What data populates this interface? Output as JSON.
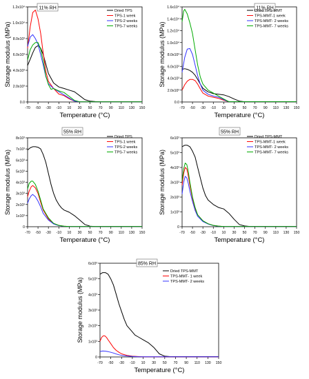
{
  "chart_data": [
    {
      "type": "line",
      "annotation": "11% RH",
      "xlabel": "Temperature (°C)",
      "ylabel": "Storage modulus (MPa)",
      "xlim": [
        -70,
        150
      ],
      "xticks": [
        "-70",
        "-50",
        "-30",
        "-10",
        "10",
        "30",
        "50",
        "70",
        "90",
        "110",
        "130",
        "150"
      ],
      "ylim": [
        0,
        12000
      ],
      "yticks": [
        "0.0",
        "2.0x10³",
        "4.0x10³",
        "6.0x10³",
        "8.0x10³",
        "1.0x10⁴",
        "1.2x10⁴"
      ],
      "legend_position": "top-right",
      "series": [
        {
          "name": "Dried TPS",
          "color": "#000000",
          "x": [
            -70,
            -65,
            -60,
            -55,
            -50,
            -45,
            -40,
            -35,
            -30,
            -20,
            -10,
            0,
            10,
            20,
            30,
            40,
            50,
            60,
            70,
            150
          ],
          "y": [
            4600,
            5400,
            6200,
            6900,
            7100,
            6800,
            6000,
            4800,
            3600,
            2400,
            1900,
            1700,
            1500,
            1300,
            800,
            300,
            100,
            50,
            30,
            30
          ]
        },
        {
          "name": "TPS-1 week",
          "color": "#ff0000",
          "x": [
            -70,
            -65,
            -60,
            -55,
            -50,
            -45,
            -40,
            -35,
            -30,
            -20,
            -10,
            0,
            10,
            20,
            30,
            150
          ],
          "y": [
            6800,
            9500,
            11300,
            11600,
            10500,
            8700,
            6200,
            3900,
            2600,
            1700,
            1000,
            800,
            400,
            100,
            30,
            30
          ]
        },
        {
          "name": "TPS-2 weeks",
          "color": "#3333ff",
          "x": [
            -70,
            -65,
            -60,
            -55,
            -50,
            -45,
            -40,
            -35,
            -30,
            -20,
            -10,
            0,
            10,
            20,
            30,
            150
          ],
          "y": [
            7000,
            8200,
            8500,
            8000,
            7300,
            6000,
            4700,
            3200,
            2300,
            1700,
            1300,
            900,
            500,
            100,
            30,
            30
          ]
        },
        {
          "name": "TPS-7 weeks",
          "color": "#00aa00",
          "x": [
            -70,
            -65,
            -60,
            -55,
            -50,
            -45,
            -40,
            -35,
            -30,
            -25,
            -20,
            -10,
            0,
            10,
            20,
            30,
            150
          ],
          "y": [
            5300,
            6600,
            7200,
            7500,
            7500,
            6700,
            5200,
            3300,
            2200,
            1600,
            1700,
            1400,
            1200,
            700,
            200,
            30,
            30
          ]
        }
      ]
    },
    {
      "type": "line",
      "annotation": "11% RH",
      "xlabel": "Temperature (°C)",
      "ylabel": "Storage modulus (MPa)",
      "xlim": [
        -70,
        150
      ],
      "xticks": [
        "-70",
        "-50",
        "-30",
        "-10",
        "10",
        "30",
        "50",
        "70",
        "90",
        "110",
        "130",
        "150"
      ],
      "ylim": [
        0,
        16000
      ],
      "yticks": [
        "0.0",
        "2.0x10³",
        "4.0x10³",
        "6.0x10³",
        "8.0x10³",
        "1.0x10⁴",
        "1.2x10⁴",
        "1.4x10⁴",
        "1.6x10⁴"
      ],
      "legend_position": "top-right",
      "series": [
        {
          "name": "Dried TPS-MMT",
          "color": "#000000",
          "x": [
            -70,
            -65,
            -60,
            -55,
            -50,
            -45,
            -40,
            -35,
            -30,
            -20,
            -10,
            0,
            10,
            20,
            30,
            40,
            50,
            150
          ],
          "y": [
            5500,
            5600,
            5500,
            5300,
            5000,
            4500,
            3800,
            3000,
            2300,
            1700,
            1400,
            1300,
            1200,
            900,
            500,
            150,
            50,
            50
          ]
        },
        {
          "name": "TPS-MMT-1 week",
          "color": "#ff0000",
          "x": [
            -70,
            -65,
            -60,
            -55,
            -50,
            -45,
            -40,
            -35,
            -30,
            -20,
            -10,
            0,
            10,
            20,
            150
          ],
          "y": [
            2000,
            2900,
            3500,
            3800,
            3800,
            3600,
            3000,
            2200,
            1500,
            1000,
            800,
            600,
            300,
            50,
            50
          ]
        },
        {
          "name": "TPS-MMT- 2 weeks",
          "color": "#3333ff",
          "x": [
            -70,
            -65,
            -60,
            -55,
            -50,
            -45,
            -40,
            -35,
            -30,
            -20,
            -10,
            0,
            10,
            20,
            150
          ],
          "y": [
            5000,
            7500,
            8900,
            9000,
            8000,
            6200,
            4400,
            3000,
            2000,
            1300,
            1000,
            800,
            400,
            50,
            50
          ]
        },
        {
          "name": "TPS-MMT- 7 weeks",
          "color": "#00aa00",
          "x": [
            -70,
            -67,
            -65,
            -60,
            -55,
            -50,
            -45,
            -40,
            -35,
            -30,
            -20,
            -10,
            0,
            10,
            20,
            150
          ],
          "y": [
            13500,
            15300,
            15600,
            14800,
            13300,
            11500,
            8800,
            6200,
            4200,
            3000,
            2000,
            1500,
            1000,
            500,
            50,
            50
          ]
        }
      ]
    },
    {
      "type": "line",
      "annotation": "55% RH",
      "xlabel": "Temperature (°C)",
      "ylabel": "Storage modulus (MPa)",
      "xlim": [
        -70,
        150
      ],
      "xticks": [
        "-70",
        "-50",
        "-30",
        "-10",
        "10",
        "30",
        "50",
        "70",
        "90",
        "110",
        "130",
        "150"
      ],
      "ylim": [
        0,
        8000
      ],
      "yticks": [
        "0",
        "1x10³",
        "2x10³",
        "3x10³",
        "4x10³",
        "5x10³",
        "6x10³",
        "7x10³",
        "8x10³"
      ],
      "legend_position": "top-right",
      "series": [
        {
          "name": "Dried TPS",
          "color": "#000000",
          "x": [
            -70,
            -65,
            -60,
            -55,
            -50,
            -45,
            -40,
            -35,
            -30,
            -25,
            -20,
            -15,
            -10,
            -5,
            0,
            10,
            20,
            30,
            40,
            50,
            60,
            150
          ],
          "y": [
            6900,
            7100,
            7200,
            7200,
            7150,
            7000,
            6500,
            5800,
            4800,
            3800,
            3000,
            2400,
            2000,
            1700,
            1500,
            1300,
            1000,
            600,
            200,
            50,
            20,
            20
          ]
        },
        {
          "name": "TPS-1 week",
          "color": "#ff0000",
          "x": [
            -70,
            -67,
            -63,
            -60,
            -55,
            -50,
            -45,
            -40,
            -30,
            -20,
            -10,
            0,
            10,
            20,
            30,
            150
          ],
          "y": [
            2700,
            3200,
            3600,
            3700,
            3500,
            3000,
            2200,
            1500,
            700,
            300,
            120,
            50,
            20,
            10,
            10,
            10
          ]
        },
        {
          "name": "TPS-2 weeks",
          "color": "#3333ff",
          "x": [
            -70,
            -67,
            -63,
            -60,
            -55,
            -50,
            -45,
            -40,
            -30,
            -20,
            -10,
            0,
            10,
            20,
            30,
            150
          ],
          "y": [
            2100,
            2500,
            2800,
            2900,
            2700,
            2300,
            1800,
            1200,
            600,
            250,
            100,
            40,
            20,
            10,
            10,
            10
          ]
        },
        {
          "name": "TPS-7 weeks",
          "color": "#00aa00",
          "x": [
            -70,
            -67,
            -63,
            -60,
            -55,
            -50,
            -45,
            -40,
            -30,
            -20,
            -10,
            0,
            10,
            20,
            30,
            150
          ],
          "y": [
            3400,
            3900,
            4100,
            4100,
            3800,
            3200,
            2400,
            1600,
            800,
            300,
            120,
            50,
            20,
            10,
            10,
            10
          ]
        }
      ]
    },
    {
      "type": "line",
      "annotation": "55% RH",
      "xlabel": "Temperature (°C)",
      "ylabel": "Storage modulus (MPa)",
      "xlim": [
        -70,
        150
      ],
      "xticks": [
        "-70",
        "-50",
        "-30",
        "-10",
        "10",
        "30",
        "50",
        "70",
        "90",
        "110",
        "130",
        "150"
      ],
      "ylim": [
        0,
        6000
      ],
      "yticks": [
        "0",
        "1x10³",
        "2x10³",
        "3x10³",
        "4x10³",
        "5x10³",
        "6x10³"
      ],
      "legend_position": "top-right",
      "series": [
        {
          "name": "Dried TPS-MMT",
          "color": "#000000",
          "x": [
            -70,
            -65,
            -60,
            -55,
            -50,
            -45,
            -40,
            -35,
            -30,
            -25,
            -20,
            -10,
            0,
            10,
            20,
            30,
            40,
            50,
            60,
            150
          ],
          "y": [
            5400,
            5500,
            5500,
            5400,
            5100,
            4700,
            4000,
            3300,
            2600,
            2100,
            1800,
            1500,
            1300,
            1200,
            900,
            500,
            150,
            50,
            20,
            20
          ]
        },
        {
          "name": "TPS-MMT-1 week",
          "color": "#ff0000",
          "x": [
            -70,
            -67,
            -64,
            -61,
            -58,
            -55,
            -50,
            -45,
            -40,
            -30,
            -20,
            -10,
            0,
            10,
            150
          ],
          "y": [
            2800,
            3600,
            4000,
            3900,
            3400,
            2800,
            1900,
            1200,
            800,
            400,
            200,
            90,
            40,
            10,
            10
          ]
        },
        {
          "name": "TPS-MMT- 2 weeks",
          "color": "#3333ff",
          "x": [
            -70,
            -67,
            -64,
            -61,
            -58,
            -55,
            -50,
            -45,
            -40,
            -30,
            -20,
            -10,
            0,
            10,
            150
          ],
          "y": [
            2200,
            3000,
            3400,
            3300,
            2900,
            2400,
            1700,
            1100,
            700,
            350,
            180,
            80,
            30,
            10,
            10
          ]
        },
        {
          "name": "TPS-MMT- 7 weeks",
          "color": "#00aa00",
          "x": [
            -70,
            -67,
            -64,
            -61,
            -58,
            -55,
            -50,
            -45,
            -40,
            -30,
            -20,
            -10,
            0,
            10,
            150
          ],
          "y": [
            3100,
            3900,
            4300,
            4200,
            3700,
            3000,
            2000,
            1300,
            800,
            400,
            200,
            90,
            40,
            10,
            10
          ]
        }
      ]
    },
    {
      "type": "line",
      "annotation": "85% RH",
      "xlabel": "Temperature (°C)",
      "ylabel": "Storage modulus (MPa)",
      "xlim": [
        -70,
        150
      ],
      "xticks": [
        "-70",
        "-50",
        "-30",
        "-10",
        "10",
        "30",
        "50",
        "70",
        "90",
        "110",
        "130",
        "150"
      ],
      "ylim": [
        0,
        6000
      ],
      "yticks": [
        "0",
        "1x10³",
        "2x10³",
        "3x10³",
        "4x10³",
        "5x10³",
        "6x10³"
      ],
      "legend_position": "top-right",
      "series": [
        {
          "name": "Dried TPS-MMT",
          "color": "#000000",
          "x": [
            -70,
            -65,
            -60,
            -55,
            -50,
            -45,
            -40,
            -35,
            -30,
            -25,
            -20,
            -15,
            -10,
            -5,
            0,
            10,
            20,
            30,
            40,
            50,
            60,
            150
          ],
          "y": [
            5300,
            5400,
            5400,
            5300,
            5000,
            4600,
            4000,
            3400,
            2900,
            2400,
            2000,
            1800,
            1600,
            1400,
            1300,
            1100,
            900,
            600,
            200,
            50,
            20,
            20
          ]
        },
        {
          "name": "TPS-MMT- 1 week",
          "color": "#ff0000",
          "x": [
            -70,
            -67,
            -64,
            -61,
            -58,
            -55,
            -50,
            -45,
            -40,
            -35,
            -30,
            -20,
            -10,
            0,
            10,
            20,
            150
          ],
          "y": [
            1000,
            1250,
            1350,
            1350,
            1250,
            1100,
            850,
            600,
            420,
            300,
            200,
            100,
            50,
            25,
            10,
            10,
            10
          ]
        },
        {
          "name": "TPS-MMT- 2 weeks",
          "color": "#3333ff",
          "x": [
            -70,
            -65,
            -60,
            -55,
            -50,
            -45,
            -40,
            -35,
            -30,
            -20,
            -10,
            0,
            10,
            150
          ],
          "y": [
            350,
            380,
            370,
            340,
            300,
            250,
            190,
            140,
            100,
            60,
            30,
            15,
            10,
            10
          ]
        }
      ]
    }
  ]
}
